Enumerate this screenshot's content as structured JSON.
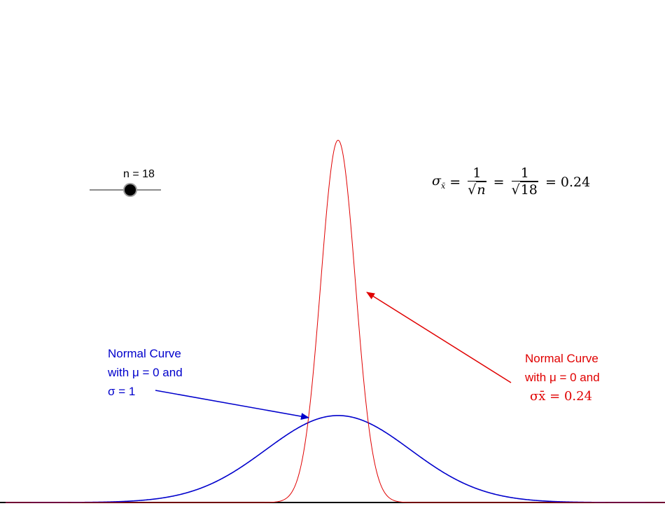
{
  "slider": {
    "label": "n = 18",
    "n": 18
  },
  "formula": {
    "sigma": "σ",
    "subscript": "x̄",
    "eq": "=",
    "one": "1",
    "sqrt": "√",
    "n_symbol": "n",
    "n_value": "18",
    "result": "0.24"
  },
  "annotations": {
    "blue": {
      "line1": "Normal Curve",
      "line2": "with μ = 0 and",
      "line3": "σ = 1"
    },
    "red": {
      "line1": "Normal Curve",
      "line2": "with μ = 0 and",
      "line3": "σx̄ = 0.24"
    }
  },
  "colors": {
    "standard_curve": "#0000cc",
    "sampling_curve": "#e00000",
    "axis": "#000000"
  },
  "chart_data": {
    "type": "line",
    "series": [
      {
        "mu": 0,
        "sigma": 1
      },
      {
        "mu": 0,
        "sigma": 0.24
      }
    ],
    "xlim": [
      -4.6,
      4.6
    ],
    "grid": false,
    "legend": "none"
  }
}
